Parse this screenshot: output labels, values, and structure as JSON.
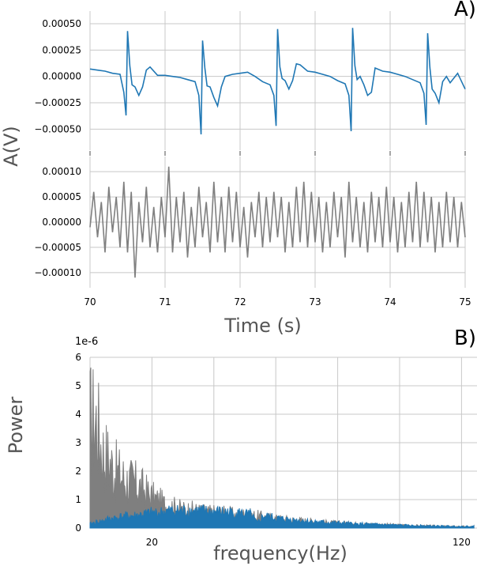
{
  "chart_data": [
    {
      "type": "line",
      "panel_label": "A)",
      "ylabel": "A(V)",
      "xlabel": "Time (s)",
      "xlim": [
        70,
        75
      ],
      "x_ticks": [
        70,
        71,
        72,
        73,
        74,
        75
      ],
      "x_tick_labels": [
        "70",
        "71",
        "72",
        "73",
        "74",
        "75"
      ],
      "grid": true,
      "subplots": [
        {
          "ylim": [
            -0.0007,
            0.00062
          ],
          "y_ticks": [
            0.0005,
            0.00025,
            0.0,
            -0.00025,
            -0.0005
          ],
          "y_tick_labels": [
            "0.00050",
            "0.00025",
            "0.00000",
            "−0.00025",
            "−0.00050"
          ],
          "series": [
            {
              "color": "#1f77b4",
              "x": [
                70.0,
                70.1,
                70.2,
                70.3,
                70.4,
                70.45,
                70.48,
                70.5,
                70.53,
                70.56,
                70.6,
                70.65,
                70.7,
                70.75,
                70.8,
                70.9,
                71.0,
                71.1,
                71.2,
                71.3,
                71.4,
                71.45,
                71.48,
                71.5,
                71.53,
                71.56,
                71.6,
                71.65,
                71.7,
                71.75,
                71.8,
                71.9,
                72.0,
                72.1,
                72.2,
                72.3,
                72.4,
                72.45,
                72.48,
                72.5,
                72.53,
                72.56,
                72.6,
                72.65,
                72.7,
                72.75,
                72.8,
                72.9,
                73.0,
                73.1,
                73.2,
                73.3,
                73.4,
                73.45,
                73.48,
                73.5,
                73.53,
                73.56,
                73.6,
                73.65,
                73.7,
                73.75,
                73.8,
                73.9,
                74.0,
                74.1,
                74.2,
                74.3,
                74.4,
                74.45,
                74.48,
                74.5,
                74.53,
                74.56,
                74.6,
                74.65,
                74.7,
                74.75,
                74.8,
                74.9,
                75.0
              ],
              "y": [
                7e-05,
                6e-05,
                5e-05,
                3e-05,
                2e-05,
                -0.00015,
                -0.00037,
                0.00043,
                0.0001,
                -8e-05,
                -0.0001,
                -0.00018,
                -0.0001,
                6e-05,
                9e-05,
                1e-05,
                1e-05,
                0.0,
                -1e-05,
                -3e-05,
                -5e-05,
                -0.00018,
                -0.00055,
                0.00034,
                8e-05,
                -9e-05,
                -0.0001,
                -0.0002,
                -0.00028,
                -0.0001,
                0.0,
                2e-05,
                3e-05,
                4e-05,
                0.0,
                -5e-05,
                -8e-05,
                -0.00018,
                -0.00047,
                0.00045,
                9e-05,
                -2e-05,
                -4e-05,
                -0.00012,
                -4e-05,
                0.00012,
                0.00011,
                5e-05,
                4e-05,
                2e-05,
                0.0,
                -4e-05,
                -7e-05,
                -0.00018,
                -0.00052,
                0.00046,
                0.0001,
                -3e-05,
                0.0,
                -8e-05,
                -0.00018,
                -0.00015,
                8e-05,
                5e-05,
                4e-05,
                2e-05,
                0.0,
                -3e-05,
                -6e-05,
                -0.00016,
                -0.00046,
                0.00041,
                8e-05,
                -0.00012,
                -0.00016,
                -0.00025,
                -5e-05,
                0.0,
                -6e-05,
                3e-05,
                -0.00012
              ]
            }
          ]
        },
        {
          "ylim": [
            -0.00013,
            0.00013
          ],
          "y_ticks": [
            0.0001,
            5e-05,
            0.0,
            -5e-05,
            -0.0001
          ],
          "y_tick_labels": [
            "0.00010",
            "0.00005",
            "0.00000",
            "−0.00005",
            "−0.00010"
          ],
          "series": [
            {
              "color": "#7f7f7f",
              "x": [
                70.0,
                70.05,
                70.1,
                70.15,
                70.2,
                70.25,
                70.3,
                70.35,
                70.4,
                70.45,
                70.5,
                70.55,
                70.6,
                70.65,
                70.7,
                70.75,
                70.8,
                70.85,
                70.9,
                70.95,
                71.0,
                71.05,
                71.1,
                71.15,
                71.2,
                71.25,
                71.3,
                71.35,
                71.4,
                71.45,
                71.5,
                71.55,
                71.6,
                71.65,
                71.7,
                71.75,
                71.8,
                71.85,
                71.9,
                71.95,
                72.0,
                72.05,
                72.1,
                72.15,
                72.2,
                72.25,
                72.3,
                72.35,
                72.4,
                72.45,
                72.5,
                72.55,
                72.6,
                72.65,
                72.7,
                72.75,
                72.8,
                72.85,
                72.9,
                72.95,
                73.0,
                73.05,
                73.1,
                73.15,
                73.2,
                73.25,
                73.3,
                73.35,
                73.4,
                73.45,
                73.5,
                73.55,
                73.6,
                73.65,
                73.7,
                73.75,
                73.8,
                73.85,
                73.9,
                73.95,
                74.0,
                74.05,
                74.1,
                74.15,
                74.2,
                74.25,
                74.3,
                74.35,
                74.4,
                74.45,
                74.5,
                74.55,
                74.6,
                74.65,
                74.7,
                74.75,
                74.8,
                74.85,
                74.9,
                74.95,
                75.0
              ],
              "y": [
                -1e-05,
                6e-05,
                -3e-05,
                4e-05,
                -6e-05,
                7e-05,
                -2e-05,
                5e-05,
                -5e-05,
                8e-05,
                -6e-05,
                6e-05,
                -0.00011,
                4e-05,
                -4e-05,
                7e-05,
                -5e-05,
                3e-05,
                -6e-05,
                5e-05,
                -3e-05,
                0.00011,
                -6e-05,
                5e-05,
                -4e-05,
                6e-05,
                -7e-05,
                3e-05,
                -5e-05,
                7e-05,
                -3e-05,
                4e-05,
                -6e-05,
                8e-05,
                -4e-05,
                5e-05,
                -6e-05,
                7e-05,
                -4e-05,
                6e-05,
                -5e-05,
                3e-05,
                -7e-05,
                4e-05,
                -3e-05,
                6e-05,
                -5e-05,
                5e-05,
                -4e-05,
                6e-05,
                -3e-05,
                5e-05,
                -6e-05,
                4e-05,
                -5e-05,
                7e-05,
                -4e-05,
                8e-05,
                -5e-05,
                6e-05,
                -4e-05,
                5e-05,
                -6e-05,
                4e-05,
                -5e-05,
                6e-05,
                -3e-05,
                5e-05,
                -7e-05,
                8e-05,
                -4e-05,
                5e-05,
                -5e-05,
                4e-05,
                -6e-05,
                6e-05,
                -4e-05,
                5e-05,
                -5e-05,
                7e-05,
                -4e-05,
                5e-05,
                -6e-05,
                4e-05,
                -5e-05,
                6e-05,
                -4e-05,
                8e-05,
                -5e-05,
                6e-05,
                -4e-05,
                5e-05,
                -6e-05,
                4e-05,
                -5e-05,
                6e-05,
                -4e-05,
                5e-05,
                -5e-05,
                4e-05,
                -3e-05
              ]
            }
          ]
        }
      ]
    },
    {
      "type": "area",
      "panel_label": "B)",
      "ylabel": "Power",
      "xlabel": "frequency(Hz)",
      "y_scale_label": "1e-6",
      "xlim": [
        0,
        125
      ],
      "ylim": [
        0,
        6
      ],
      "x_ticks": [
        20,
        120
      ],
      "x_tick_labels": [
        "20",
        "120"
      ],
      "x_grid": [
        0,
        20,
        40,
        60,
        80,
        100,
        120
      ],
      "y_ticks": [
        0,
        1,
        2,
        3,
        4,
        5,
        6
      ],
      "y_tick_labels": [
        "0",
        "1",
        "2",
        "3",
        "4",
        "5",
        "6"
      ],
      "grid": true,
      "series": [
        {
          "color": "#7f7f7f",
          "x": [
            0,
            2,
            4,
            6,
            8,
            10,
            12,
            14,
            16,
            18,
            20,
            22,
            24,
            26,
            28,
            30,
            32,
            34,
            36,
            38,
            40,
            42,
            44,
            46,
            48,
            50,
            52,
            54,
            56,
            58,
            60,
            62,
            64,
            66,
            68,
            70,
            72,
            74,
            76,
            78,
            80,
            82,
            84,
            86,
            88,
            90,
            92,
            94,
            96,
            98,
            100,
            102,
            104,
            106,
            108,
            110,
            112,
            114,
            116,
            118,
            120,
            122,
            124
          ],
          "y": [
            6.0,
            6.0,
            4.3,
            3.8,
            3.2,
            2.9,
            2.6,
            2.5,
            2.3,
            2.0,
            1.7,
            1.5,
            1.3,
            1.2,
            1.1,
            1.0,
            1.0,
            0.95,
            0.9,
            0.85,
            0.85,
            0.85,
            0.8,
            0.75,
            0.7,
            0.75,
            0.7,
            0.65,
            0.6,
            0.55,
            0.5,
            0.5,
            0.45,
            0.42,
            0.4,
            0.38,
            0.35,
            0.32,
            0.3,
            0.28,
            0.27,
            0.25,
            0.24,
            0.22,
            0.2,
            0.2,
            0.19,
            0.18,
            0.17,
            0.16,
            0.15,
            0.14,
            0.13,
            0.12,
            0.12,
            0.11,
            0.1,
            0.1,
            0.09,
            0.09,
            0.08,
            0.08,
            0.08
          ]
        },
        {
          "color": "#1f77b4",
          "x": [
            0,
            2,
            4,
            6,
            8,
            10,
            12,
            14,
            16,
            18,
            20,
            22,
            24,
            26,
            28,
            30,
            32,
            34,
            36,
            38,
            40,
            42,
            44,
            46,
            48,
            50,
            52,
            54,
            56,
            58,
            60,
            62,
            64,
            66,
            68,
            70,
            72,
            74,
            76,
            78,
            80,
            82,
            84,
            86,
            88,
            90,
            92,
            94,
            96,
            98,
            100,
            102,
            104,
            106,
            108,
            110,
            112,
            114,
            116,
            118,
            120,
            122,
            124
          ],
          "y": [
            0.2,
            0.3,
            0.35,
            0.45,
            0.5,
            0.55,
            0.6,
            0.6,
            0.65,
            0.7,
            0.75,
            0.75,
            0.8,
            0.85,
            0.85,
            0.85,
            0.85,
            0.85,
            0.85,
            0.8,
            0.8,
            0.8,
            0.8,
            0.75,
            0.75,
            0.7,
            0.65,
            0.25,
            0.6,
            0.55,
            0.5,
            0.45,
            0.42,
            0.4,
            0.38,
            0.35,
            0.32,
            0.3,
            0.28,
            0.27,
            0.25,
            0.24,
            0.22,
            0.2,
            0.2,
            0.19,
            0.18,
            0.17,
            0.16,
            0.15,
            0.14,
            0.13,
            0.12,
            0.12,
            0.11,
            0.1,
            0.1,
            0.09,
            0.09,
            0.08,
            0.08,
            0.08,
            0.08
          ]
        }
      ]
    }
  ]
}
